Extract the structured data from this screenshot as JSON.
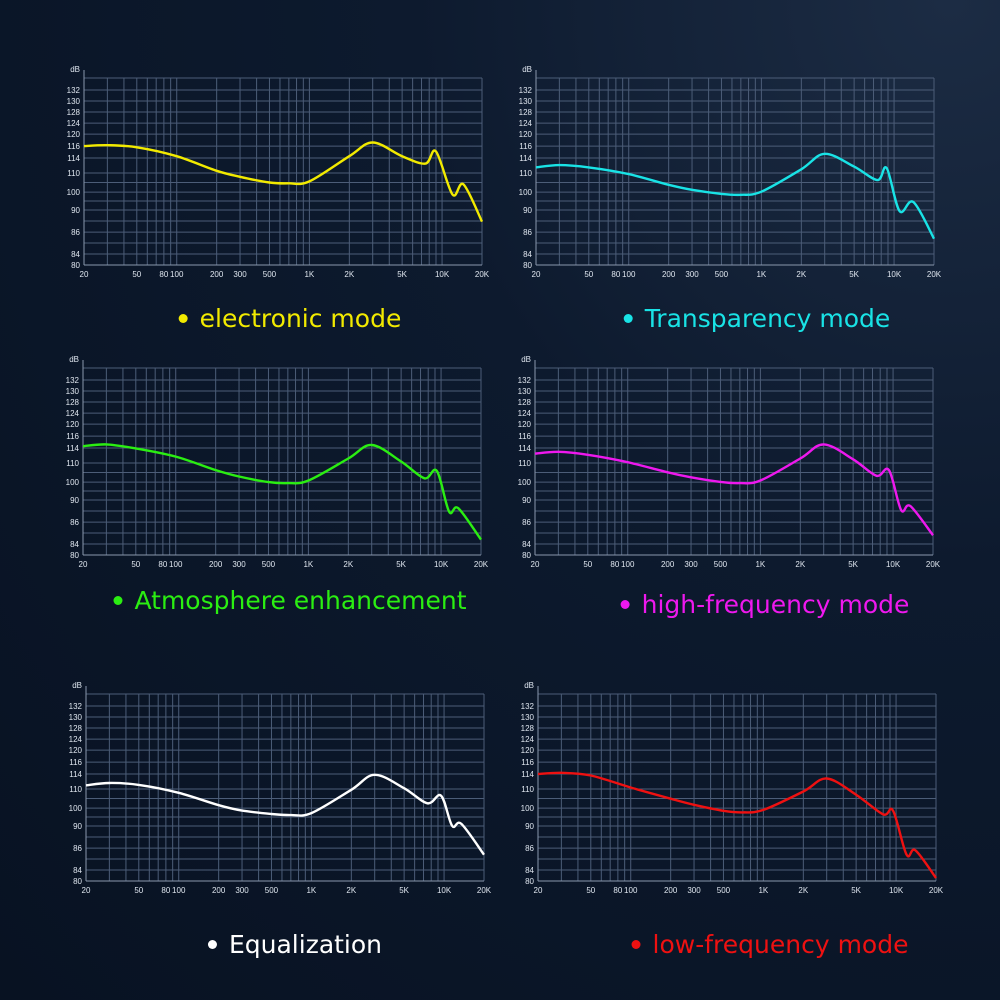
{
  "axes": {
    "y_unit": "dB",
    "y_ticks": [
      132,
      130,
      128,
      124,
      120,
      116,
      114,
      110,
      100,
      90,
      86,
      84,
      80
    ],
    "x_ticks": [
      {
        "v": 20,
        "l": "20"
      },
      {
        "v": 50,
        "l": "50"
      },
      {
        "v": 80,
        "l": "80"
      },
      {
        "v": 100,
        "l": "100"
      },
      {
        "v": 200,
        "l": "200"
      },
      {
        "v": 300,
        "l": "300"
      },
      {
        "v": 500,
        "l": "500"
      },
      {
        "v": 1000,
        "l": "1K"
      },
      {
        "v": 2000,
        "l": "2K"
      },
      {
        "v": 5000,
        "l": "5K"
      },
      {
        "v": 10000,
        "l": "10K"
      },
      {
        "v": 20000,
        "l": "20K"
      }
    ],
    "x_scale": "log",
    "xlim": [
      20,
      20000
    ],
    "grid": true
  },
  "chart_data": [
    {
      "type": "line",
      "name": "electronic mode",
      "color": "#f2ea00",
      "x": [
        20,
        30,
        50,
        100,
        200,
        300,
        500,
        700,
        1000,
        2000,
        3000,
        5000,
        7500,
        9000,
        12000,
        14500,
        20000
      ],
      "y": [
        116,
        116.3,
        115.8,
        114.3,
        110.6,
        108,
        105,
        104.6,
        105.6,
        114.3,
        117.2,
        114.3,
        112.5,
        115.1,
        98.6,
        104,
        87.9
      ]
    },
    {
      "type": "line",
      "name": "Transparency mode",
      "color": "#19e3e6",
      "x": [
        20,
        30,
        50,
        100,
        200,
        300,
        500,
        700,
        1000,
        2000,
        3000,
        5000,
        7500,
        8800,
        11000,
        14000,
        20000
      ],
      "y": [
        111.5,
        112.1,
        111.5,
        109.4,
        103.8,
        101.2,
        99,
        98.5,
        100.2,
        111,
        114.7,
        111.7,
        106.3,
        111.3,
        89.8,
        94.4,
        85.4
      ]
    },
    {
      "type": "line",
      "name": "Atmosphere enhancement",
      "color": "#2bee12",
      "x": [
        20,
        30,
        50,
        100,
        200,
        300,
        500,
        700,
        1000,
        2000,
        3000,
        5000,
        7500,
        9300,
        11500,
        13500,
        20000
      ],
      "y": [
        114.3,
        114.6,
        113.9,
        111.7,
        106.3,
        102.9,
        100,
        99.4,
        100.8,
        111.2,
        114.5,
        110.4,
        102,
        105.8,
        87.9,
        88.5,
        84.4
      ]
    },
    {
      "type": "line",
      "name": "high-frequency mode",
      "color": "#ee18ee",
      "x": [
        20,
        30,
        50,
        100,
        200,
        300,
        500,
        700,
        1000,
        2000,
        3000,
        5000,
        7500,
        9300,
        11500,
        13500,
        20000
      ],
      "y": [
        112.5,
        113,
        112.2,
        110.2,
        105.1,
        102.5,
        100.1,
        99.4,
        100.8,
        111.2,
        114.6,
        111,
        103.3,
        106.3,
        88.2,
        88.9,
        84.8
      ]
    },
    {
      "type": "line",
      "name": "Equalization",
      "color": "#ffffff",
      "x": [
        20,
        30,
        50,
        100,
        200,
        300,
        500,
        700,
        1000,
        2000,
        3000,
        5000,
        7500,
        9500,
        11500,
        13500,
        20000
      ],
      "y": [
        111,
        111.6,
        111.1,
        108,
        101.5,
        98.6,
        96.7,
        96.1,
        97.2,
        109.6,
        113.8,
        110.2,
        102.5,
        106.5,
        90.1,
        91.2,
        85.4
      ]
    },
    {
      "type": "line",
      "name": "low-frequency mode",
      "color": "#ee1111",
      "x": [
        20,
        30,
        50,
        100,
        200,
        300,
        500,
        700,
        1000,
        2000,
        3000,
        5000,
        8000,
        9500,
        12000,
        14000,
        20000
      ],
      "y": [
        114,
        114.2,
        113.6,
        110.4,
        104.9,
        101.7,
        98.5,
        97.6,
        99,
        108.7,
        112.8,
        107,
        96.5,
        98.5,
        85.4,
        85.8,
        81.1
      ]
    }
  ]
}
